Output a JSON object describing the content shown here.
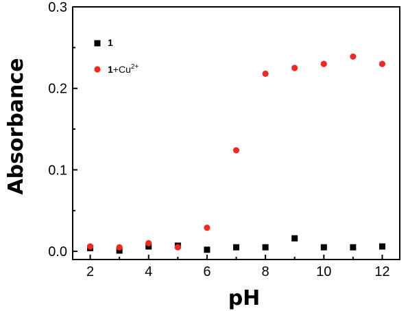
{
  "chart_data": {
    "type": "scatter",
    "xlabel": "pH",
    "ylabel": "Absorbance",
    "xlim": [
      1.4,
      12.6
    ],
    "ylim": [
      -0.01,
      0.3
    ],
    "x_ticks": [
      2,
      4,
      6,
      8,
      10,
      12
    ],
    "x_tick_labels": [
      "2",
      "4",
      "6",
      "8",
      "10",
      "12"
    ],
    "y_ticks": [
      0.0,
      0.1,
      0.2,
      0.3
    ],
    "y_tick_labels": [
      "0.0",
      "0.1",
      "0.2",
      "0.3"
    ],
    "grid": false,
    "legend_position": "top-left",
    "series": [
      {
        "legend_main": "1",
        "legend_suffix": "",
        "legend_sup": "",
        "marker": "square",
        "color": "#000000",
        "x": [
          2,
          3,
          4,
          5,
          6,
          7,
          8,
          9,
          10,
          11,
          12
        ],
        "y": [
          0.004,
          0.001,
          0.006,
          0.007,
          0.002,
          0.005,
          0.005,
          0.016,
          0.005,
          0.005,
          0.006
        ]
      },
      {
        "legend_main": "1",
        "legend_suffix": "+Cu",
        "legend_sup": "2+",
        "marker": "circle",
        "color": "#ee2a24",
        "x": [
          2,
          3,
          4,
          5,
          6,
          7,
          8,
          9,
          10,
          11,
          12
        ],
        "y": [
          0.006,
          0.005,
          0.01,
          0.005,
          0.029,
          0.124,
          0.218,
          0.225,
          0.23,
          0.239,
          0.23
        ]
      }
    ]
  }
}
